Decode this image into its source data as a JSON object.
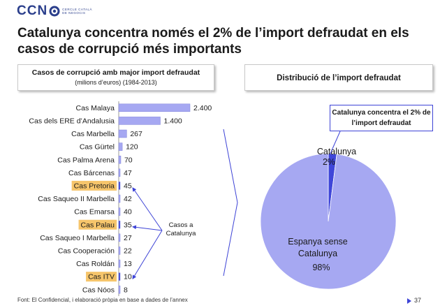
{
  "header": {
    "logo_text": "CCN",
    "logo_sub": "CERCLE CATALÀ DE NEGOCIS",
    "title": "Catalunya concentra només el 2% de l’import defraudat en els casos de corrupció més importants"
  },
  "left_panel": {
    "heading": "Casos de corrupció amb major import defraudat",
    "subheading": "(milions d’euros) (1984-2013)"
  },
  "right_panel": {
    "heading": "Distribució de l’import defraudat",
    "callout": "Catalunya concentra el 2% de l’import defraudat"
  },
  "annotation": "Casos a Catalunya",
  "footer": {
    "source": "Font: El Confidencial, i elaboració pròpia en base a dades de l’annex",
    "page": "37"
  },
  "colors": {
    "bar": "#a6a8f2",
    "bar_dark": "#3f46d9",
    "highlight": "#f6c56b",
    "pie_main": "#a6a8f2",
    "pie_slice": "#3f46d9",
    "accent": "#3d43d6"
  },
  "chart_data": [
    {
      "type": "bar",
      "orientation": "horizontal",
      "categories": [
        "Cas Malaya",
        "Cas dels ERE d’Andalusia",
        "Cas Marbella",
        "Cas Gürtel",
        "Cas Palma Arena",
        "Cas Bárcenas",
        "Cas Pretoria",
        "Cas Saqueo II Marbella",
        "Cas Emarsa",
        "Cas Palau",
        "Cas Saqueo I Marbella",
        "Cas Cooperación",
        "Cas Roldán",
        "Cas ITV",
        "Cas Nóos"
      ],
      "values": [
        2400,
        1400,
        267,
        120,
        70,
        47,
        45,
        42,
        40,
        35,
        27,
        22,
        13,
        10,
        8
      ],
      "value_labels": [
        "2.400",
        "1.400",
        "267",
        "120",
        "70",
        "47",
        "45",
        "42",
        "40",
        "35",
        "27",
        "22",
        "13",
        "10",
        "8"
      ],
      "highlighted": [
        "Cas Pretoria",
        "Cas Palau",
        "Cas ITV"
      ],
      "xlim": [
        0,
        2400
      ]
    },
    {
      "type": "pie",
      "slices": [
        {
          "label": "Catalunya",
          "value": 2,
          "value_label": "2%"
        },
        {
          "label": "Espanya sense Catalunya",
          "value": 98,
          "value_label": "98%"
        }
      ]
    }
  ]
}
